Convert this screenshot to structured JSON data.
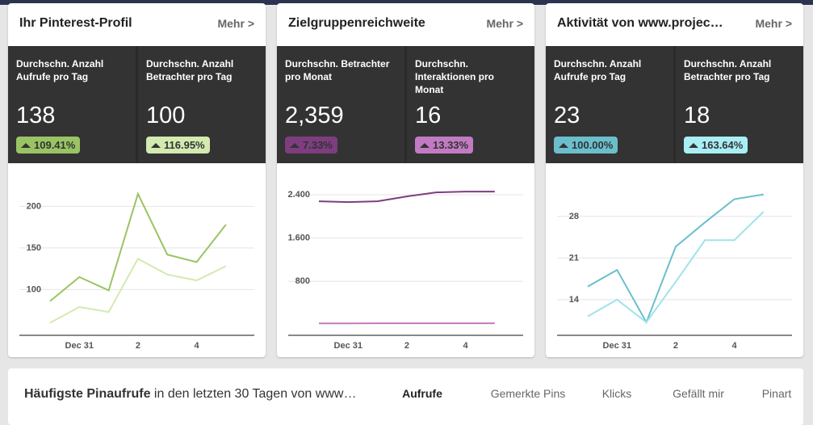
{
  "cards": [
    {
      "title": "Ihr Pinterest-Profil",
      "more": "Mehr >",
      "stats": [
        {
          "label": "Durchschn. Anzahl Aufrufe pro Tag",
          "value": "138",
          "change": "109.41%",
          "color": "#9ac464"
        },
        {
          "label": "Durchschn. Anzahl Betrachter pro Tag",
          "value": "100",
          "change": "116.95%",
          "color": "#d3eab0"
        }
      ],
      "chart": {
        "type": "line",
        "categories": [
          null,
          "Dec 31",
          null,
          "2",
          null,
          "4",
          null
        ],
        "series": [
          {
            "color": "#9ac464",
            "values": [
              86,
              115,
              99,
              215,
              142,
              133,
              178
            ]
          },
          {
            "color": "#d3eab0",
            "values": [
              60,
              79,
              73,
              137,
              118,
              111,
              128
            ]
          }
        ],
        "ylim": [
          45,
          245
        ],
        "yticks": [
          100,
          150,
          200
        ],
        "grid": true
      }
    },
    {
      "title": "Zielgruppenreichweite",
      "more": "Mehr >",
      "stats": [
        {
          "label": "Durchschn. Betrachter pro Monat",
          "value": "2,359",
          "change": "7.33%",
          "color": "#7e3d7e"
        },
        {
          "label": "Durchschn. Interaktionen pro Monat",
          "value": "16",
          "change": "13.33%",
          "color": "#c27bc2"
        }
      ],
      "chart": {
        "type": "line",
        "categories": [
          null,
          "Dec 31",
          null,
          "2",
          null,
          "4",
          null
        ],
        "series": [
          {
            "color": "#7e3d7e",
            "values": [
              2280,
              2265,
              2280,
              2370,
              2445,
              2460,
              2460
            ]
          },
          {
            "color": "#c27bc2",
            "values": [
              20,
              20,
              22,
              22,
              22,
              22,
              22
            ]
          }
        ],
        "ylim": [
          -200,
          2880
        ],
        "yticks": [
          {
            "value": 800,
            "label": "800"
          },
          {
            "value": 1600,
            "label": "1.600"
          },
          {
            "value": 2400,
            "label": "2.400"
          }
        ],
        "grid": true
      }
    },
    {
      "title": "Aktivität von www.projec…",
      "more": "Mehr >",
      "stats": [
        {
          "label": "Durchschn. Anzahl Aufrufe pro Tag",
          "value": "23",
          "change": "100.00%",
          "color": "#6bbfcc"
        },
        {
          "label": "Durchschn. Anzahl Betrachter pro Tag",
          "value": "18",
          "change": "163.64%",
          "color": "#a9eef5"
        }
      ],
      "chart": {
        "type": "line",
        "categories": [
          null,
          "Dec 31",
          null,
          "2",
          null,
          "4",
          null
        ],
        "series": [
          {
            "color": "#6bbfcc",
            "values": [
              16.2,
              19,
              10.2,
              22.9,
              27,
              30.9,
              31.7
            ]
          },
          {
            "color": "#9ee3ec",
            "values": [
              11.2,
              14,
              10.2,
              17,
              24,
              24,
              28.8
            ]
          }
        ],
        "ylim": [
          8,
          36
        ],
        "yticks": [
          14,
          21,
          28
        ],
        "grid": true
      }
    }
  ],
  "bottom": {
    "title_bold": "Häufigste Pinaufrufe",
    "title_rest": " in den letzten 30 Tagen von www…",
    "tabs": [
      "Aufrufe",
      "Gemerkte Pins",
      "Klicks",
      "Gefällt mir",
      "Pinart"
    ]
  }
}
